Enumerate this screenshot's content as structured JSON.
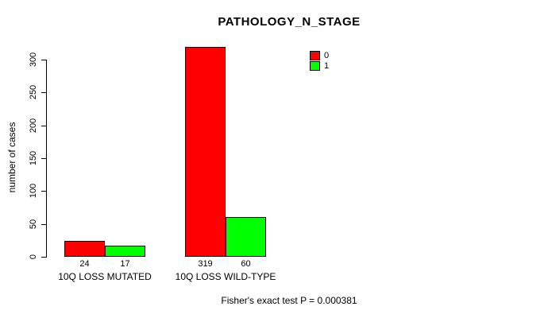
{
  "title": "PATHOLOGY_N_STAGE",
  "chart_data": {
    "type": "bar",
    "title": "PATHOLOGY_N_STAGE",
    "categories": [
      "10Q LOSS MUTATED",
      "10Q LOSS WILD-TYPE"
    ],
    "series": [
      {
        "name": "0",
        "color": "#ff0000",
        "values": [
          24,
          319
        ]
      },
      {
        "name": "1",
        "color": "#00ff00",
        "values": [
          17,
          60
        ]
      }
    ],
    "xlabel": "",
    "ylabel": "number of cases",
    "yticks": [
      0,
      50,
      100,
      150,
      200,
      250,
      300
    ],
    "ylim": [
      0,
      300
    ],
    "grid": false,
    "legend_position": "top-right",
    "bar_value_labels": [
      [
        24,
        17
      ],
      [
        319,
        60
      ]
    ],
    "footer": "Fisher's exact test P = 0.000381"
  }
}
